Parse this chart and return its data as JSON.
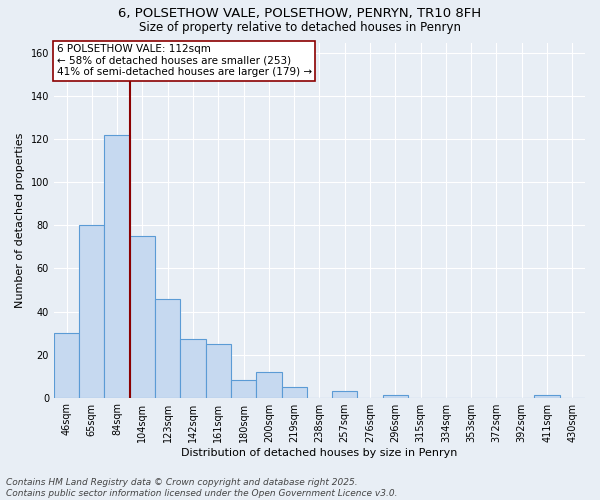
{
  "title_line1": "6, POLSETHOW VALE, POLSETHOW, PENRYN, TR10 8FH",
  "title_line2": "Size of property relative to detached houses in Penryn",
  "xlabel": "Distribution of detached houses by size in Penryn",
  "ylabel": "Number of detached properties",
  "categories": [
    "46sqm",
    "65sqm",
    "84sqm",
    "104sqm",
    "123sqm",
    "142sqm",
    "161sqm",
    "180sqm",
    "200sqm",
    "219sqm",
    "238sqm",
    "257sqm",
    "276sqm",
    "296sqm",
    "315sqm",
    "334sqm",
    "353sqm",
    "372sqm",
    "392sqm",
    "411sqm",
    "430sqm"
  ],
  "values": [
    30,
    80,
    122,
    75,
    46,
    27,
    25,
    8,
    12,
    5,
    0,
    3,
    0,
    1,
    0,
    0,
    0,
    0,
    0,
    1,
    0
  ],
  "bar_color": "#c6d9f0",
  "bar_edge_color": "#5b9bd5",
  "bar_linewidth": 0.8,
  "vline_x_index": 2.5,
  "vline_color": "#8b0000",
  "vline_label": "6 POLSETHOW VALE: 112sqm",
  "annotation_line2": "← 58% of detached houses are smaller (253)",
  "annotation_line3": "41% of semi-detached houses are larger (179) →",
  "annotation_box_color": "#ffffff",
  "annotation_box_edgecolor": "#8b0000",
  "ylim": [
    0,
    165
  ],
  "yticks": [
    0,
    20,
    40,
    60,
    80,
    100,
    120,
    140,
    160
  ],
  "background_color": "#e8eef5",
  "grid_color": "#ffffff",
  "footnote_line1": "Contains HM Land Registry data © Crown copyright and database right 2025.",
  "footnote_line2": "Contains public sector information licensed under the Open Government Licence v3.0.",
  "title_fontsize": 9.5,
  "subtitle_fontsize": 8.5,
  "axis_label_fontsize": 8,
  "tick_fontsize": 7,
  "footnote_fontsize": 6.5,
  "annotation_fontsize": 7.5
}
